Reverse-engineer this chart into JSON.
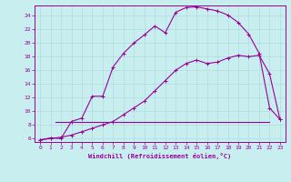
{
  "xlabel": "Windchill (Refroidissement éolien,°C)",
  "bg_color": "#c8eef0",
  "line_color": "#990099",
  "grid_color": "#b0dde0",
  "xlim": [
    -0.5,
    23.5
  ],
  "ylim": [
    5.5,
    25.5
  ],
  "xticks": [
    0,
    1,
    2,
    3,
    4,
    5,
    6,
    7,
    8,
    9,
    10,
    11,
    12,
    13,
    14,
    15,
    16,
    17,
    18,
    19,
    20,
    21,
    22,
    23
  ],
  "yticks": [
    6,
    8,
    10,
    12,
    14,
    16,
    18,
    20,
    22,
    24
  ],
  "curve1_x": [
    0,
    1,
    2,
    3,
    4,
    5,
    6,
    7,
    8,
    9,
    10,
    11,
    12,
    13,
    14,
    15,
    16,
    17,
    18,
    19,
    20,
    21,
    22,
    23
  ],
  "curve1_y": [
    5.8,
    6.1,
    6.0,
    8.5,
    9.0,
    12.2,
    12.2,
    16.5,
    18.5,
    20.0,
    21.2,
    22.5,
    21.5,
    24.5,
    25.2,
    25.3,
    25.0,
    24.7,
    24.1,
    23.0,
    21.3,
    18.5,
    10.5,
    8.8
  ],
  "curve2_x": [
    0,
    1,
    2,
    3,
    4,
    5,
    6,
    7,
    8,
    9,
    10,
    11,
    12,
    13,
    14,
    15,
    16,
    17,
    18,
    19,
    20,
    21,
    22,
    23
  ],
  "curve2_y": [
    5.8,
    6.0,
    6.2,
    6.5,
    7.0,
    7.5,
    8.0,
    8.5,
    9.5,
    10.5,
    11.5,
    13.0,
    14.5,
    16.0,
    17.0,
    17.5,
    17.0,
    17.2,
    17.8,
    18.2,
    18.0,
    18.2,
    15.5,
    8.8
  ],
  "hline_y": 8.5,
  "hline_x_start": 1.5,
  "hline_x_end": 22.0
}
